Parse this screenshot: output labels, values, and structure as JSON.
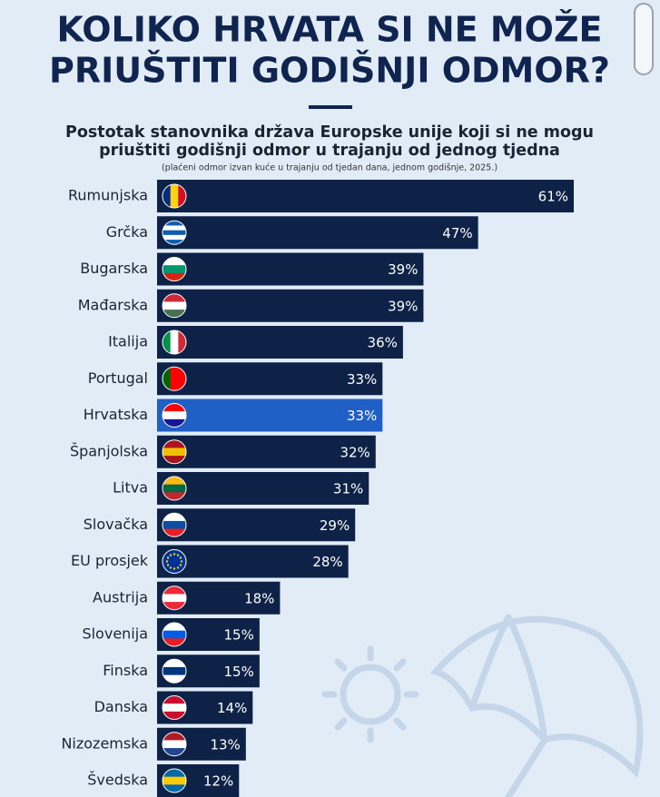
{
  "chart_data": {
    "type": "bar",
    "orientation": "horizontal",
    "title": [
      "KOLIKO HRVATA SI NE MOŽE",
      "PRIUŠTITI GODIŠNJI ODMOR?"
    ],
    "subtitle": [
      "Postotak stanovnika država Europske unije koji si ne mogu",
      "priuštiti godišnji odmor u trajanju od jednog tjedna"
    ],
    "note": "(plaćeni odmor izvan kuće u trajanju od tjedan dana, jednom godišnje, 2025.)",
    "categories": [
      "Rumunjska",
      "Grčka",
      "Bugarska",
      "Mađarska",
      "Italija",
      "Portugal",
      "Hrvatska",
      "Španjolska",
      "Litva",
      "Slovačka",
      "EU prosjek",
      "Austrija",
      "Slovenija",
      "Finska",
      "Danska",
      "Nizozemska",
      "Švedska"
    ],
    "values": [
      61,
      47,
      39,
      39,
      36,
      33,
      33,
      32,
      31,
      29,
      28,
      18,
      15,
      15,
      14,
      13,
      12
    ],
    "value_labels": [
      "61%",
      "47%",
      "39%",
      "39%",
      "36%",
      "33%",
      "33%",
      "32%",
      "31%",
      "29%",
      "28%",
      "18%",
      "15%",
      "15%",
      "14%",
      "13%",
      "12%"
    ],
    "colors": [
      "#0e2248",
      "#0e2248",
      "#0e2248",
      "#0e2248",
      "#0e2248",
      "#0e2248",
      "#1f5fc6",
      "#0e2248",
      "#0e2248",
      "#0e2248",
      "#0e2248",
      "#0e2248",
      "#0e2248",
      "#0e2248",
      "#0e2248",
      "#0e2248",
      "#0e2248"
    ]
  }
}
